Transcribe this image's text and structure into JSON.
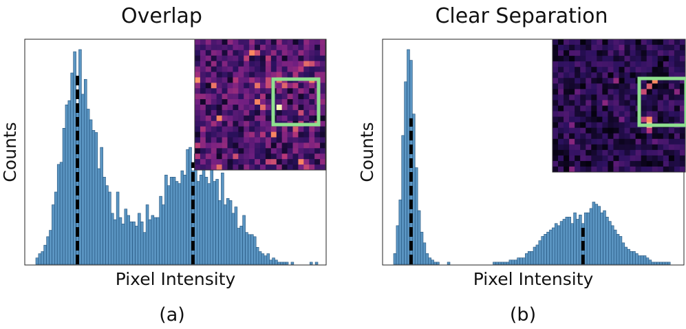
{
  "figure": {
    "panels": [
      {
        "title": "Overlap",
        "caption": "(a)"
      },
      {
        "title": "Clear Separation",
        "caption": "(b)"
      }
    ]
  },
  "colors": {
    "bar_fill": "#5b95c2",
    "bar_edge": "#1f4f78",
    "mean_line": "#000000",
    "roi_box": "#8fe08f",
    "inset_bg": "#1b0b38"
  },
  "chart_data": [
    {
      "type": "bar",
      "title": "Overlap",
      "caption": "(a)",
      "xlabel": "Pixel Intensity",
      "ylabel": "Counts",
      "x_ticks": [],
      "y_ticks": [],
      "bin_count": 105,
      "values": [
        3,
        5,
        6,
        9,
        13,
        16,
        28,
        34,
        47,
        48,
        64,
        75,
        77,
        90,
        100,
        75,
        101,
        80,
        87,
        73,
        68,
        63,
        62,
        45,
        55,
        41,
        37,
        34,
        24,
        21,
        34,
        22,
        19,
        26,
        23,
        20,
        20,
        18,
        24,
        20,
        15,
        28,
        21,
        23,
        22,
        22,
        32,
        28,
        42,
        37,
        41,
        41,
        39,
        38,
        44,
        42,
        54,
        55,
        44,
        52,
        39,
        42,
        48,
        41,
        38,
        53,
        39,
        40,
        30,
        43,
        28,
        31,
        30,
        24,
        27,
        17,
        18,
        23,
        15,
        14,
        14,
        13,
        8,
        6,
        5,
        4,
        5,
        2,
        3,
        2,
        1,
        1,
        1,
        1,
        0,
        1,
        0,
        0,
        0,
        0,
        0,
        0,
        1,
        0,
        1
      ],
      "mean_markers": [
        {
          "bin": 15,
          "height": 90
        },
        {
          "bin": 58,
          "height": 48
        }
      ],
      "inset": {
        "type": "heatmap",
        "grid": 24,
        "colormap": "magma",
        "roi": "green box"
      }
    },
    {
      "type": "bar",
      "title": "Clear Separation",
      "caption": "(b)",
      "xlabel": "Pixel Intensity",
      "ylabel": "Counts",
      "x_ticks": [],
      "y_ticks": [],
      "bin_count": 105,
      "values": [
        5,
        18,
        30,
        60,
        85,
        100,
        95,
        70,
        45,
        25,
        15,
        10,
        5,
        3,
        2,
        1,
        1,
        0,
        0,
        0,
        1,
        0,
        0,
        0,
        0,
        0,
        0,
        0,
        0,
        0,
        0,
        0,
        0,
        0,
        0,
        0,
        0,
        1,
        1,
        1,
        1,
        1,
        1,
        2,
        2,
        2,
        3,
        3,
        3,
        5,
        6,
        6,
        8,
        9,
        11,
        13,
        14,
        15,
        16,
        17,
        19,
        18,
        20,
        21,
        22,
        22,
        19,
        24,
        21,
        23,
        19,
        24,
        24,
        26,
        29,
        28,
        27,
        24,
        25,
        22,
        20,
        18,
        16,
        14,
        13,
        10,
        8,
        7,
        6,
        6,
        5,
        4,
        4,
        4,
        3,
        2,
        1,
        1,
        1,
        1,
        1,
        1,
        1,
        0,
        0
      ],
      "mean_markers": [
        {
          "bin": 6,
          "height": 68
        },
        {
          "bin": 70,
          "height": 17
        }
      ],
      "inset": {
        "type": "heatmap",
        "grid": 24,
        "colormap": "magma",
        "roi": "green box"
      }
    }
  ]
}
